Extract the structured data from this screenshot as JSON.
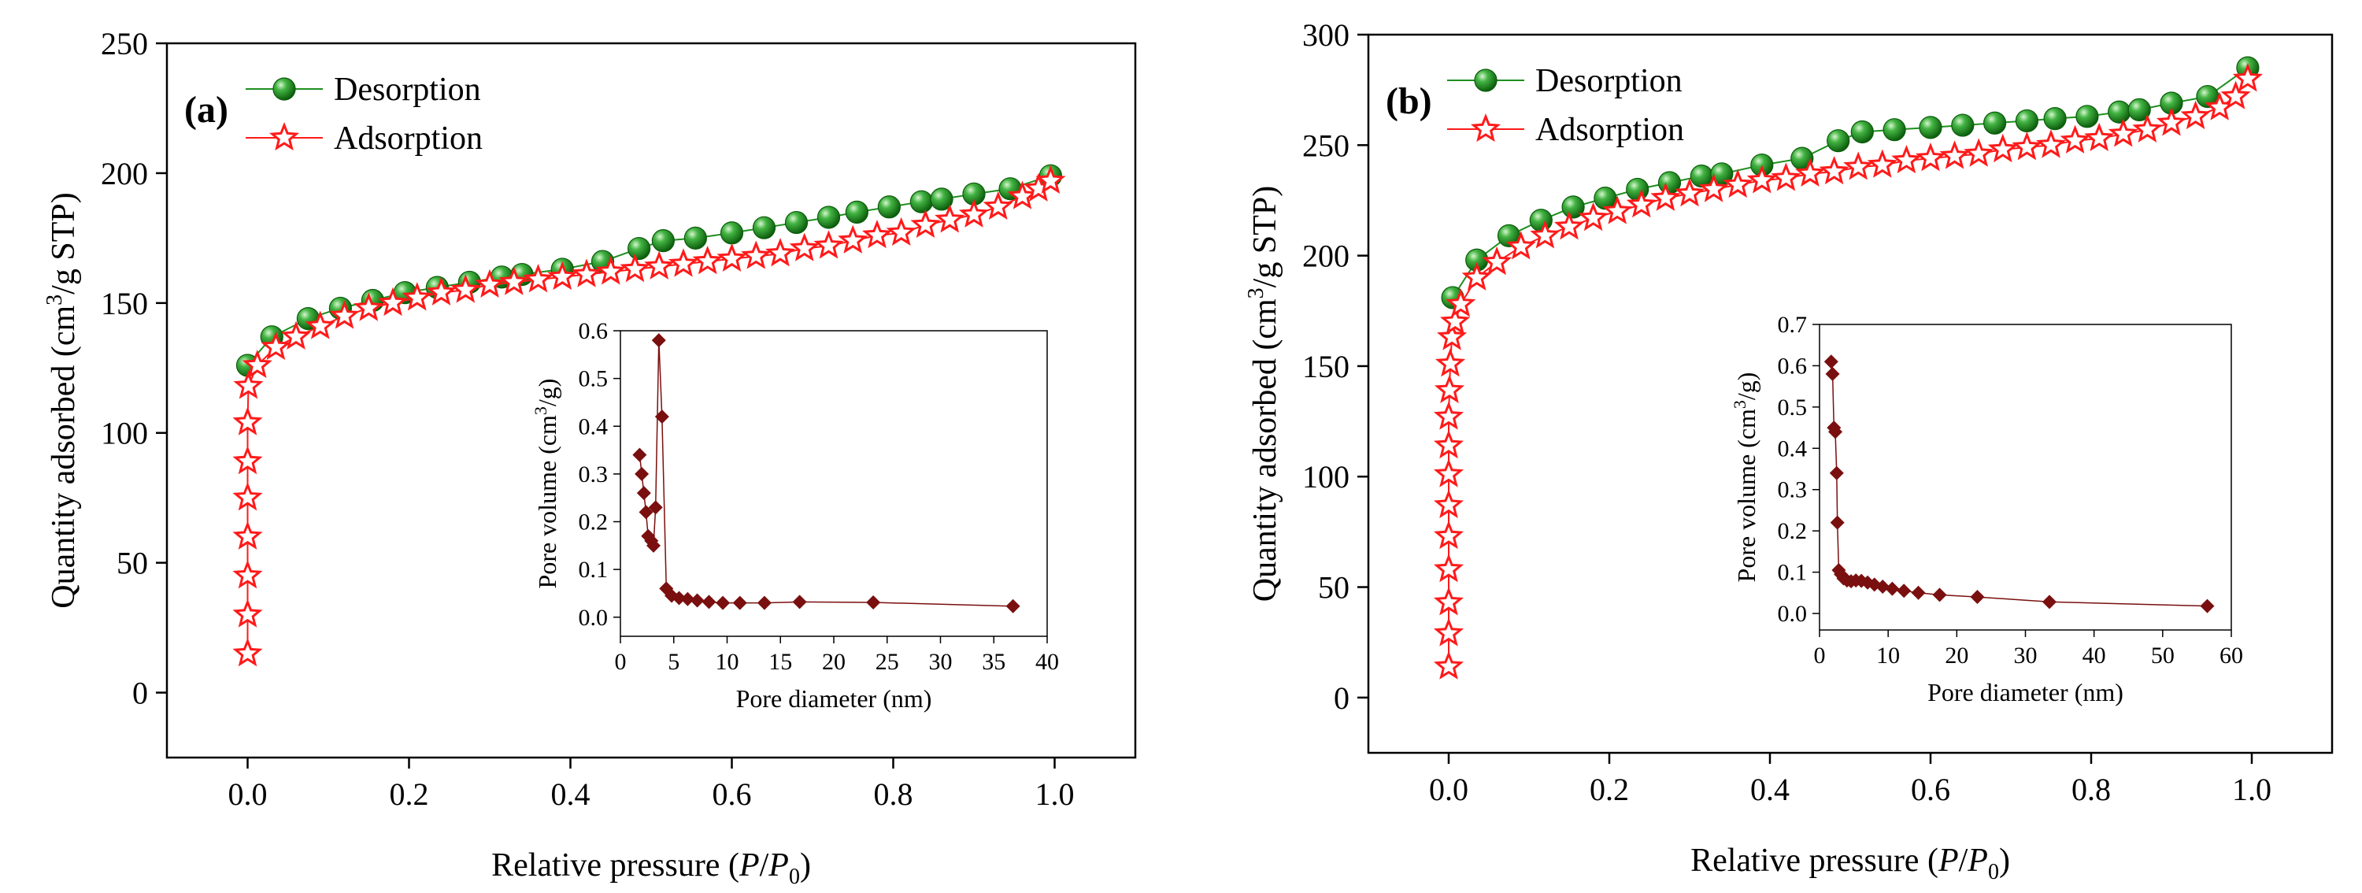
{
  "chart_data": [
    {
      "type": "scatter",
      "panel_label": "(a)",
      "xlabel_parts": [
        "Relative pressure (",
        "P",
        "/",
        "P",
        "0",
        ")"
      ],
      "ylabel_parts": [
        "Quantity adsorbed (cm",
        "3",
        "/g STP)"
      ],
      "xlim": [
        -0.1,
        1.1
      ],
      "ylim": [
        -25,
        250
      ],
      "xticks": [
        0.0,
        0.2,
        0.4,
        0.6,
        0.8,
        1.0
      ],
      "xtick_labels": [
        "0.0",
        "0.2",
        "0.4",
        "0.6",
        "0.8",
        "1.0"
      ],
      "yticks": [
        0,
        50,
        100,
        150,
        200,
        250
      ],
      "ytick_labels": [
        "0",
        "50",
        "100",
        "150",
        "200",
        "250"
      ],
      "legend_position": "top-left",
      "series": [
        {
          "name": "Desorption",
          "marker": "ball",
          "color": "#1e8f1e",
          "points": [
            [
              0.0,
              126
            ],
            [
              0.03,
              137
            ],
            [
              0.075,
              144
            ],
            [
              0.115,
              148
            ],
            [
              0.155,
              151
            ],
            [
              0.195,
              154
            ],
            [
              0.235,
              156
            ],
            [
              0.275,
              158
            ],
            [
              0.315,
              160
            ],
            [
              0.34,
              161
            ],
            [
              0.39,
              163
            ],
            [
              0.44,
              166
            ],
            [
              0.485,
              171
            ],
            [
              0.515,
              174
            ],
            [
              0.555,
              175
            ],
            [
              0.6,
              177
            ],
            [
              0.64,
              179
            ],
            [
              0.68,
              181
            ],
            [
              0.72,
              183
            ],
            [
              0.755,
              185
            ],
            [
              0.795,
              187
            ],
            [
              0.835,
              189
            ],
            [
              0.86,
              190
            ],
            [
              0.9,
              192
            ],
            [
              0.945,
              194
            ],
            [
              0.995,
              199
            ]
          ]
        },
        {
          "name": "Adsorption",
          "marker": "star",
          "color": "#ff1a1a",
          "points": [
            [
              0.0,
              15
            ],
            [
              0.0,
              30
            ],
            [
              0.0,
              45
            ],
            [
              0.0,
              60
            ],
            [
              0.0,
              75
            ],
            [
              0.0,
              89
            ],
            [
              0.0,
              104
            ],
            [
              0.001,
              118
            ],
            [
              0.012,
              126
            ],
            [
              0.035,
              133
            ],
            [
              0.06,
              137
            ],
            [
              0.09,
              141
            ],
            [
              0.12,
              145
            ],
            [
              0.15,
              148
            ],
            [
              0.18,
              150
            ],
            [
              0.21,
              152
            ],
            [
              0.24,
              154
            ],
            [
              0.27,
              155
            ],
            [
              0.3,
              157
            ],
            [
              0.33,
              158
            ],
            [
              0.36,
              159
            ],
            [
              0.39,
              160
            ],
            [
              0.42,
              161
            ],
            [
              0.45,
              162
            ],
            [
              0.48,
              163
            ],
            [
              0.51,
              164
            ],
            [
              0.54,
              165
            ],
            [
              0.57,
              166
            ],
            [
              0.6,
              167
            ],
            [
              0.63,
              168
            ],
            [
              0.66,
              169
            ],
            [
              0.69,
              171
            ],
            [
              0.72,
              172
            ],
            [
              0.75,
              174
            ],
            [
              0.78,
              176
            ],
            [
              0.81,
              177
            ],
            [
              0.84,
              180
            ],
            [
              0.87,
              182
            ],
            [
              0.9,
              184
            ],
            [
              0.93,
              187
            ],
            [
              0.96,
              191
            ],
            [
              0.98,
              194
            ],
            [
              0.995,
              197
            ]
          ]
        }
      ],
      "inset": {
        "xlabel": "Pore diameter (nm)",
        "ylabel_parts": [
          "Pore volume (cm",
          "3",
          "/g)"
        ],
        "xlim": [
          0,
          40
        ],
        "ylim": [
          -0.04,
          0.6
        ],
        "xticks": [
          0,
          5,
          10,
          15,
          20,
          25,
          30,
          35,
          40
        ],
        "xtick_labels": [
          "0",
          "5",
          "10",
          "15",
          "20",
          "25",
          "30",
          "35",
          "40"
        ],
        "yticks": [
          0.0,
          0.1,
          0.2,
          0.3,
          0.4,
          0.5,
          0.6
        ],
        "ytick_labels": [
          "0.0",
          "0.1",
          "0.2",
          "0.3",
          "0.4",
          "0.5",
          "0.6"
        ],
        "color": "#7a0f0f",
        "points": [
          [
            1.8,
            0.34
          ],
          [
            2.0,
            0.3
          ],
          [
            2.2,
            0.26
          ],
          [
            2.4,
            0.22
          ],
          [
            2.6,
            0.17
          ],
          [
            2.9,
            0.16
          ],
          [
            3.1,
            0.15
          ],
          [
            3.3,
            0.23
          ],
          [
            3.6,
            0.58
          ],
          [
            3.9,
            0.42
          ],
          [
            4.3,
            0.06
          ],
          [
            4.8,
            0.045
          ],
          [
            5.5,
            0.04
          ],
          [
            6.3,
            0.038
          ],
          [
            7.2,
            0.035
          ],
          [
            8.3,
            0.032
          ],
          [
            9.6,
            0.03
          ],
          [
            11.2,
            0.03
          ],
          [
            13.5,
            0.03
          ],
          [
            16.8,
            0.032
          ],
          [
            23.7,
            0.031
          ],
          [
            36.8,
            0.023
          ]
        ]
      }
    },
    {
      "type": "scatter",
      "panel_label": "(b)",
      "xlabel_parts": [
        "Relative pressure (",
        "P",
        "/",
        "P",
        "0",
        ")"
      ],
      "ylabel_parts": [
        "Quantity adsorbed (cm",
        "3",
        "/g STP)"
      ],
      "xlim": [
        -0.1,
        1.1
      ],
      "ylim": [
        -25,
        300
      ],
      "xticks": [
        0.0,
        0.2,
        0.4,
        0.6,
        0.8,
        1.0
      ],
      "xtick_labels": [
        "0.0",
        "0.2",
        "0.4",
        "0.6",
        "0.8",
        "1.0"
      ],
      "yticks": [
        0,
        50,
        100,
        150,
        200,
        250,
        300
      ],
      "ytick_labels": [
        "0",
        "50",
        "100",
        "150",
        "200",
        "250",
        "300"
      ],
      "legend_position": "top-left",
      "series": [
        {
          "name": "Desorption",
          "marker": "ball",
          "color": "#1e8f1e",
          "points": [
            [
              0.005,
              181
            ],
            [
              0.035,
              198
            ],
            [
              0.075,
              209
            ],
            [
              0.115,
              216
            ],
            [
              0.155,
              222
            ],
            [
              0.195,
              226
            ],
            [
              0.235,
              230
            ],
            [
              0.275,
              233
            ],
            [
              0.315,
              236
            ],
            [
              0.34,
              237
            ],
            [
              0.39,
              241
            ],
            [
              0.44,
              244
            ],
            [
              0.485,
              252
            ],
            [
              0.515,
              256
            ],
            [
              0.555,
              257
            ],
            [
              0.6,
              258
            ],
            [
              0.64,
              259
            ],
            [
              0.68,
              260
            ],
            [
              0.72,
              261
            ],
            [
              0.755,
              262
            ],
            [
              0.795,
              263
            ],
            [
              0.835,
              265
            ],
            [
              0.86,
              266
            ],
            [
              0.9,
              269
            ],
            [
              0.945,
              272
            ],
            [
              0.995,
              285
            ]
          ]
        },
        {
          "name": "Adsorption",
          "marker": "star",
          "color": "#ff1a1a",
          "points": [
            [
              0.0,
              14
            ],
            [
              0.0,
              29
            ],
            [
              0.0,
              43
            ],
            [
              0.0,
              58
            ],
            [
              0.0,
              73
            ],
            [
              0.0,
              87
            ],
            [
              0.0,
              101
            ],
            [
              0.0,
              114
            ],
            [
              0.0,
              127
            ],
            [
              0.001,
              139
            ],
            [
              0.002,
              151
            ],
            [
              0.004,
              163
            ],
            [
              0.008,
              170
            ],
            [
              0.015,
              178
            ],
            [
              0.035,
              190
            ],
            [
              0.06,
              197
            ],
            [
              0.09,
              204
            ],
            [
              0.12,
              209
            ],
            [
              0.15,
              213
            ],
            [
              0.18,
              217
            ],
            [
              0.21,
              220
            ],
            [
              0.24,
              223
            ],
            [
              0.27,
              226
            ],
            [
              0.3,
              228
            ],
            [
              0.33,
              230
            ],
            [
              0.36,
              232
            ],
            [
              0.39,
              234
            ],
            [
              0.42,
              235
            ],
            [
              0.45,
              237
            ],
            [
              0.48,
              238
            ],
            [
              0.51,
              240
            ],
            [
              0.54,
              241
            ],
            [
              0.57,
              243
            ],
            [
              0.6,
              244
            ],
            [
              0.63,
              245
            ],
            [
              0.66,
              246
            ],
            [
              0.69,
              248
            ],
            [
              0.72,
              249
            ],
            [
              0.75,
              250
            ],
            [
              0.78,
              252
            ],
            [
              0.81,
              253
            ],
            [
              0.84,
              255
            ],
            [
              0.87,
              257
            ],
            [
              0.9,
              260
            ],
            [
              0.93,
              263
            ],
            [
              0.96,
              267
            ],
            [
              0.98,
              272
            ],
            [
              0.995,
              280
            ]
          ]
        }
      ],
      "inset": {
        "xlabel": "Pore diameter (nm)",
        "ylabel_parts": [
          "Pore volume (cm",
          "3",
          "/g)"
        ],
        "xlim": [
          0,
          60
        ],
        "ylim": [
          -0.04,
          0.7
        ],
        "xticks": [
          0,
          10,
          20,
          30,
          40,
          50,
          60
        ],
        "xtick_labels": [
          "0",
          "10",
          "20",
          "30",
          "40",
          "50",
          "60"
        ],
        "yticks": [
          0.0,
          0.1,
          0.2,
          0.3,
          0.4,
          0.5,
          0.6,
          0.7
        ],
        "ytick_labels": [
          "0.0",
          "0.1",
          "0.2",
          "0.3",
          "0.4",
          "0.5",
          "0.6",
          "0.7"
        ],
        "color": "#7a0f0f",
        "points": [
          [
            1.7,
            0.61
          ],
          [
            1.9,
            0.58
          ],
          [
            2.1,
            0.45
          ],
          [
            2.3,
            0.44
          ],
          [
            2.5,
            0.34
          ],
          [
            2.6,
            0.22
          ],
          [
            2.8,
            0.105
          ],
          [
            3.1,
            0.095
          ],
          [
            3.5,
            0.085
          ],
          [
            4.0,
            0.08
          ],
          [
            4.6,
            0.078
          ],
          [
            5.3,
            0.08
          ],
          [
            6.1,
            0.079
          ],
          [
            7.0,
            0.075
          ],
          [
            8.0,
            0.07
          ],
          [
            9.2,
            0.065
          ],
          [
            10.6,
            0.06
          ],
          [
            12.3,
            0.055
          ],
          [
            14.4,
            0.05
          ],
          [
            17.5,
            0.045
          ],
          [
            23.0,
            0.04
          ],
          [
            33.5,
            0.028
          ],
          [
            56.5,
            0.018
          ]
        ]
      }
    }
  ]
}
